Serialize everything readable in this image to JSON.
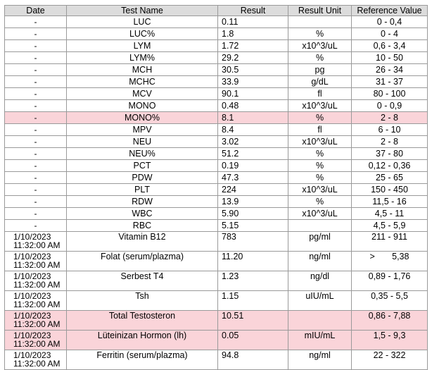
{
  "headers": [
    "Date",
    "Test Name",
    "Result",
    "Result Unit",
    "Reference Value"
  ],
  "rows": [
    {
      "date": "-",
      "time": "",
      "name": "LUC",
      "result": "0.11",
      "unit": "",
      "ref": "0 - 0,4",
      "flag": false
    },
    {
      "date": "-",
      "time": "",
      "name": "LUC%",
      "result": "1.8",
      "unit": "%",
      "ref": "0 - 4",
      "flag": false
    },
    {
      "date": "-",
      "time": "",
      "name": "LYM",
      "result": "1.72",
      "unit": "x10^3/uL",
      "ref": "0,6 - 3,4",
      "flag": false
    },
    {
      "date": "-",
      "time": "",
      "name": "LYM%",
      "result": "29.2",
      "unit": "%",
      "ref": "10 - 50",
      "flag": false
    },
    {
      "date": "-",
      "time": "",
      "name": "MCH",
      "result": "30.5",
      "unit": "pg",
      "ref": "26 - 34",
      "flag": false
    },
    {
      "date": "-",
      "time": "",
      "name": "MCHC",
      "result": "33.9",
      "unit": "g/dL",
      "ref": "31 - 37",
      "flag": false
    },
    {
      "date": "-",
      "time": "",
      "name": "MCV",
      "result": "90.1",
      "unit": "fl",
      "ref": "80 - 100",
      "flag": false
    },
    {
      "date": "-",
      "time": "",
      "name": "MONO",
      "result": "0.48",
      "unit": "x10^3/uL",
      "ref": "0 - 0,9",
      "flag": false
    },
    {
      "date": "-",
      "time": "",
      "name": "MONO%",
      "result": "8.1",
      "unit": "%",
      "ref": "2 - 8",
      "flag": true
    },
    {
      "date": "-",
      "time": "",
      "name": "MPV",
      "result": "8.4",
      "unit": "fl",
      "ref": "6 - 10",
      "flag": false
    },
    {
      "date": "-",
      "time": "",
      "name": "NEU",
      "result": "3.02",
      "unit": "x10^3/uL",
      "ref": "2 - 8",
      "flag": false
    },
    {
      "date": "-",
      "time": "",
      "name": "NEU%",
      "result": "51.2",
      "unit": "%",
      "ref": "37 - 80",
      "flag": false
    },
    {
      "date": "-",
      "time": "",
      "name": "PCT",
      "result": "0.19",
      "unit": "%",
      "ref": "0,12 - 0,36",
      "flag": false
    },
    {
      "date": "-",
      "time": "",
      "name": "PDW",
      "result": "47.3",
      "unit": "%",
      "ref": "25 - 65",
      "flag": false
    },
    {
      "date": "-",
      "time": "",
      "name": "PLT",
      "result": "224",
      "unit": "x10^3/uL",
      "ref": "150 - 450",
      "flag": false
    },
    {
      "date": "-",
      "time": "",
      "name": "RDW",
      "result": "13.9",
      "unit": "%",
      "ref": "11,5 - 16",
      "flag": false
    },
    {
      "date": "-",
      "time": "",
      "name": "WBC",
      "result": "5.90",
      "unit": "x10^3/uL",
      "ref": "4,5 - 11",
      "flag": false
    },
    {
      "date": "-",
      "time": "",
      "name": "RBC",
      "result": "5.15",
      "unit": "",
      "ref": "4,5 - 5,9",
      "flag": false
    },
    {
      "date": "1/10/2023",
      "time": "11:32:00 AM",
      "name": "Vitamin B12",
      "result": "783",
      "unit": "pg/ml",
      "ref": "211 - 911",
      "flag": false
    },
    {
      "date": "1/10/2023",
      "time": "11:32:00 AM",
      "name": "Folat (serum/plazma)",
      "result": "11.20",
      "unit": "ng/ml",
      "ref": ">       5,38",
      "flag": false
    },
    {
      "date": "1/10/2023",
      "time": "11:32:00 AM",
      "name": "Serbest T4",
      "result": "1.23",
      "unit": "ng/dl",
      "ref": "0,89 - 1,76",
      "flag": false
    },
    {
      "date": "1/10/2023",
      "time": "11:32:00 AM",
      "name": "Tsh",
      "result": "1.15",
      "unit": "uIU/mL",
      "ref": "0,35 - 5,5",
      "flag": false
    },
    {
      "date": "1/10/2023",
      "time": "11:32:00 AM",
      "name": "Total Testosteron",
      "result": "10.51",
      "unit": "",
      "ref": "0,86 - 7,88",
      "flag": true
    },
    {
      "date": "1/10/2023",
      "time": "11:32:00 AM",
      "name": "Lüteinizan Hormon (lh)",
      "result": "0.05",
      "unit": "mIU/mL",
      "ref": "1,5 - 9,3",
      "flag": true
    },
    {
      "date": "1/10/2023",
      "time": "11:32:00 AM",
      "name": "Ferritin (serum/plazma)",
      "result": "94.8",
      "unit": "ng/ml",
      "ref": "22 - 322",
      "flag": false
    }
  ],
  "colors": {
    "header_bg": "#dcdcdc",
    "flag_bg": "#fad4d9",
    "border": "#9a9a9a"
  }
}
